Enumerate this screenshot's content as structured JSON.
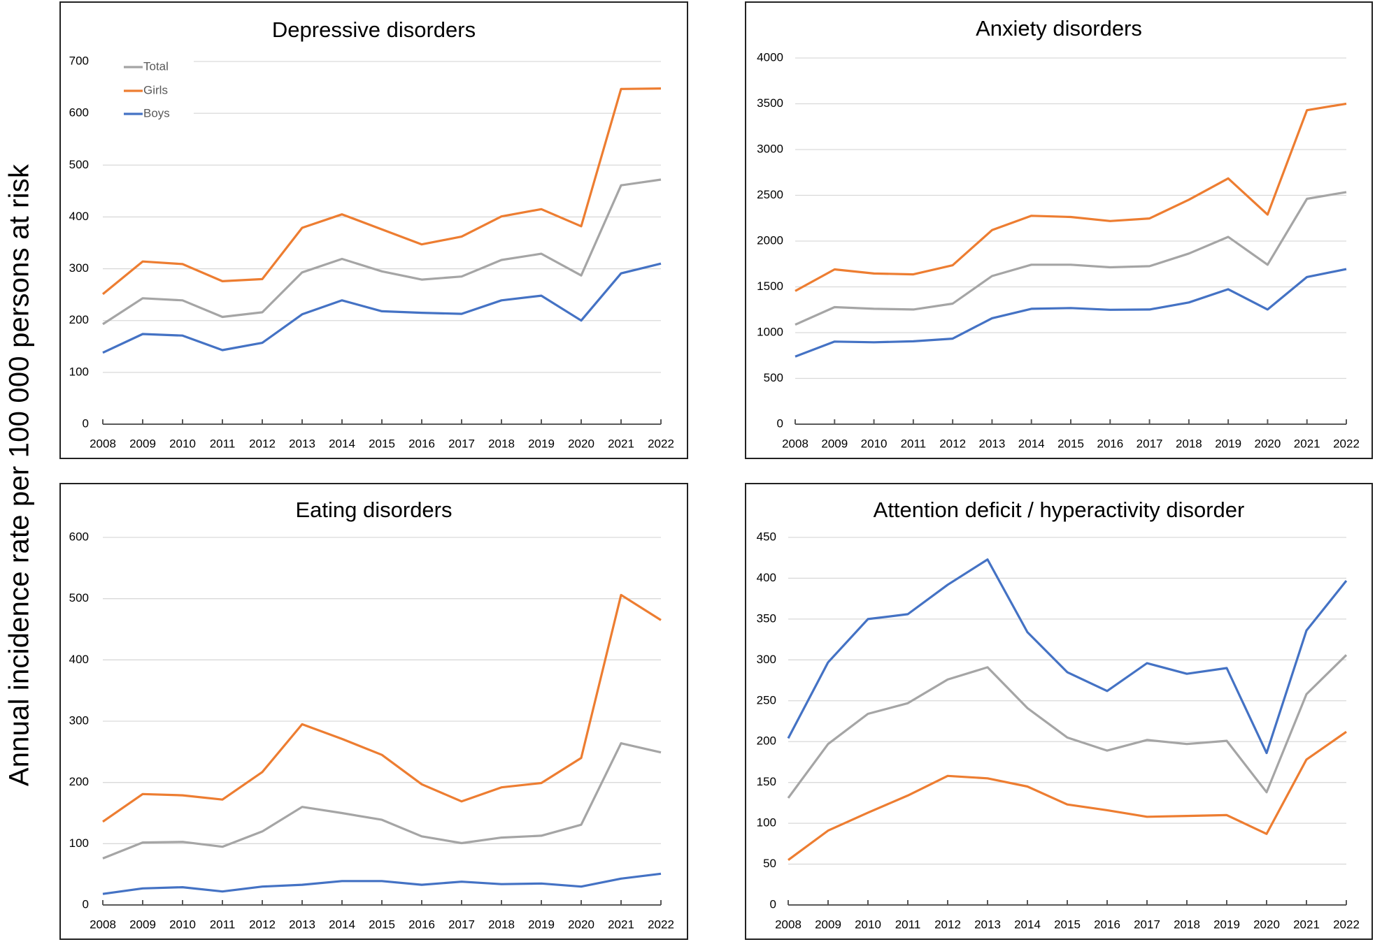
{
  "figure": {
    "ylabel": "Annual incidence rate per 100 000 persons at risk"
  },
  "legend": {
    "placement": "top-left of first panel",
    "entries": [
      {
        "name": "Total",
        "color": "#A5A5A5"
      },
      {
        "name": "Girls",
        "color": "#ED7D31"
      },
      {
        "name": "Boys",
        "color": "#4472C4"
      }
    ]
  },
  "chart_data": [
    {
      "type": "line",
      "title": "Depressive disorders",
      "xlabel": "",
      "ylabel": "Annual incidence rate per 100 000 persons at risk",
      "x": [
        2008,
        2009,
        2010,
        2011,
        2012,
        2013,
        2014,
        2015,
        2016,
        2017,
        2018,
        2019,
        2020,
        2021,
        2022
      ],
      "ylim": [
        0,
        700
      ],
      "yticks": [
        0,
        100,
        200,
        300,
        400,
        500,
        600,
        700
      ],
      "grid": true,
      "legend": "top-left",
      "series": [
        {
          "name": "Total",
          "color": "#A5A5A5",
          "values": [
            193,
            243,
            239,
            207,
            216,
            293,
            319,
            295,
            279,
            285,
            317,
            329,
            287,
            461,
            472
          ]
        },
        {
          "name": "Girls",
          "color": "#ED7D31",
          "values": [
            251,
            314,
            309,
            276,
            280,
            379,
            405,
            376,
            347,
            362,
            401,
            415,
            382,
            647,
            648
          ]
        },
        {
          "name": "Boys",
          "color": "#4472C4",
          "values": [
            138,
            174,
            171,
            143,
            157,
            212,
            239,
            218,
            215,
            213,
            239,
            248,
            200,
            291,
            310
          ]
        }
      ]
    },
    {
      "type": "line",
      "title": "Anxiety disorders",
      "xlabel": "",
      "ylabel": "Annual incidence rate per 100 000 persons at risk",
      "x": [
        2008,
        2009,
        2010,
        2011,
        2012,
        2013,
        2014,
        2015,
        2016,
        2017,
        2018,
        2019,
        2020,
        2021,
        2022
      ],
      "ylim": [
        0,
        4000
      ],
      "yticks": [
        0,
        500,
        1000,
        1500,
        2000,
        2500,
        3000,
        3500,
        4000
      ],
      "grid": true,
      "legend": "none",
      "series": [
        {
          "name": "Total",
          "color": "#A5A5A5",
          "values": [
            1087,
            1279,
            1260,
            1253,
            1317,
            1618,
            1742,
            1742,
            1714,
            1726,
            1864,
            2046,
            1742,
            2462,
            2535
          ]
        },
        {
          "name": "Girls",
          "color": "#ED7D31",
          "values": [
            1455,
            1691,
            1646,
            1637,
            1736,
            2120,
            2276,
            2263,
            2219,
            2247,
            2452,
            2685,
            2289,
            3430,
            3501
          ]
        },
        {
          "name": "Boys",
          "color": "#4472C4",
          "values": [
            739,
            902,
            895,
            905,
            934,
            1157,
            1260,
            1269,
            1250,
            1253,
            1330,
            1474,
            1253,
            1608,
            1694
          ]
        }
      ]
    },
    {
      "type": "line",
      "title": "Eating disorders",
      "xlabel": "",
      "ylabel": "Annual incidence rate per 100 000 persons at risk",
      "x": [
        2008,
        2009,
        2010,
        2011,
        2012,
        2013,
        2014,
        2015,
        2016,
        2017,
        2018,
        2019,
        2020,
        2021,
        2022
      ],
      "ylim": [
        0,
        600
      ],
      "yticks": [
        0,
        100,
        200,
        300,
        400,
        500,
        600
      ],
      "grid": true,
      "legend": "none",
      "series": [
        {
          "name": "Total",
          "color": "#A5A5A5",
          "values": [
            76,
            102,
            103,
            95,
            120,
            160,
            150,
            139,
            112,
            101,
            110,
            113,
            131,
            264,
            249
          ]
        },
        {
          "name": "Girls",
          "color": "#ED7D31",
          "values": [
            136,
            181,
            179,
            172,
            217,
            295,
            271,
            245,
            197,
            169,
            192,
            199,
            240,
            506,
            465
          ]
        },
        {
          "name": "Boys",
          "color": "#4472C4",
          "values": [
            18,
            27,
            29,
            22,
            30,
            33,
            39,
            39,
            33,
            38,
            34,
            35,
            30,
            43,
            51
          ]
        }
      ]
    },
    {
      "type": "line",
      "title": "Attention deficit / hyperactivity disorder",
      "xlabel": "",
      "ylabel": "Annual incidence rate per 100 000 persons at risk",
      "x": [
        2008,
        2009,
        2010,
        2011,
        2012,
        2013,
        2014,
        2015,
        2016,
        2017,
        2018,
        2019,
        2020,
        2021,
        2022
      ],
      "ylim": [
        0,
        450
      ],
      "yticks": [
        0,
        50,
        100,
        150,
        200,
        250,
        300,
        350,
        400,
        450
      ],
      "grid": true,
      "legend": "none",
      "series": [
        {
          "name": "Total",
          "color": "#A5A5A5",
          "values": [
            131,
            197,
            234,
            247,
            276,
            291,
            241,
            205,
            189,
            202,
            197,
            201,
            138,
            258,
            306
          ]
        },
        {
          "name": "Girls",
          "color": "#ED7D31",
          "values": [
            55,
            91,
            113,
            134,
            158,
            155,
            145,
            123,
            116,
            108,
            109,
            110,
            87,
            178,
            212
          ]
        },
        {
          "name": "Boys",
          "color": "#4472C4",
          "values": [
            204,
            297,
            350,
            356,
            392,
            423,
            334,
            285,
            262,
            296,
            283,
            290,
            186,
            336,
            397
          ]
        }
      ]
    }
  ]
}
